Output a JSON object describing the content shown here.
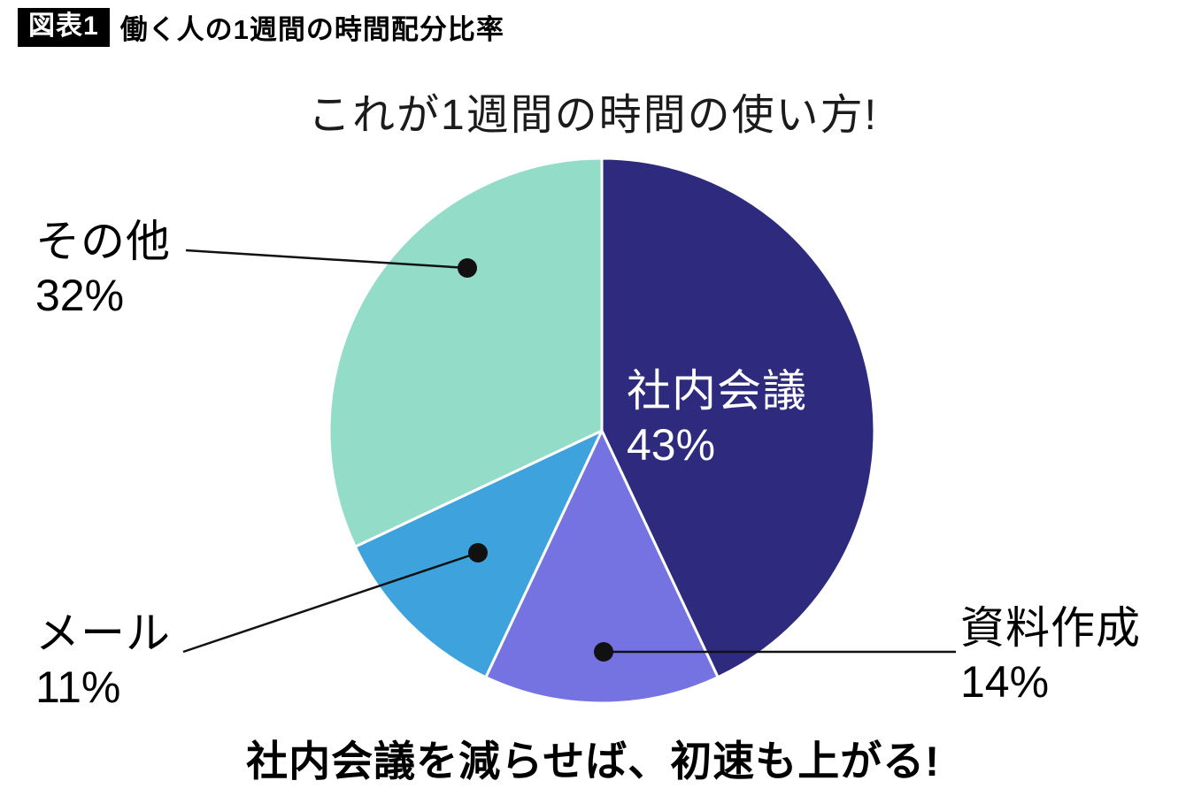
{
  "header": {
    "badge": "図表1",
    "title": "働く人の1週間の時間配分比率"
  },
  "chart_data": {
    "type": "pie",
    "title": "これが1週間の時間の使い方!",
    "start_angle": "top",
    "direction": "clockwise",
    "legend_position": "none",
    "segments": [
      {
        "label": "社内会議",
        "value": 43,
        "percent_text": "43%",
        "color": "#2e2b7e",
        "label_placement": "inside",
        "label_color": "#ffffff"
      },
      {
        "label": "資料作成",
        "value": 14,
        "percent_text": "14%",
        "color": "#7573e1",
        "label_placement": "outside-right",
        "label_color": "#000000"
      },
      {
        "label": "メール",
        "value": 11,
        "percent_text": "11%",
        "color": "#3ea3dc",
        "label_placement": "outside-left",
        "label_color": "#000000"
      },
      {
        "label": "その他",
        "value": 32,
        "percent_text": "32%",
        "color": "#93dcc7",
        "label_placement": "outside-left",
        "label_color": "#000000"
      }
    ],
    "caption": "社内会議を減らせば、初速も上がる!"
  }
}
